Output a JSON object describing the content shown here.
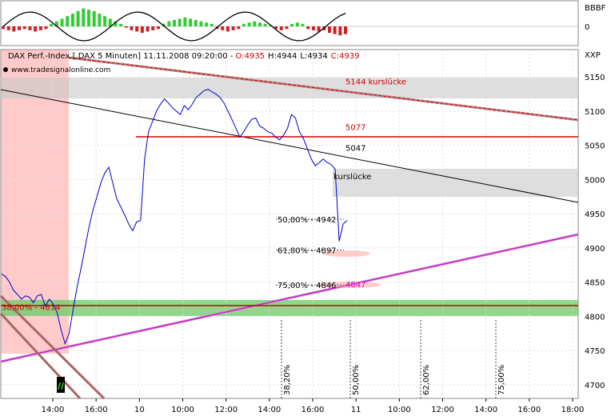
{
  "chart_data": {
    "type": "line",
    "title": "DAX Perf.-Index [.DAX  5 Minuten] 11.11.2008 09:20:00 - O:4935 H:4944 L:4934 C:4939",
    "title_parts": {
      "instrument": "DAX Perf.-Index [.DAX  5 Minuten] 11.11.2008 09:20:00 - ",
      "open": "O:4935",
      "high": "H:4944",
      "low": "L:4934",
      "close": "C:4939"
    },
    "source": "www.tradesignalonline.com",
    "xlabel": "",
    "ylabel": "",
    "ylim": [
      4680,
      5190
    ],
    "y_ticks": [
      "5150",
      "5100",
      "5050",
      "5000",
      "4950",
      "4900",
      "4850",
      "4800",
      "4750",
      "4700"
    ],
    "x_ticks": [
      "14:00",
      "16:00",
      "10",
      "10:00",
      "12:00",
      "14:00",
      "16:00",
      "11",
      "10:00",
      "12:00",
      "14:00",
      "16:00",
      "18:00"
    ],
    "y_axis_label": "XXP",
    "series": [
      {
        "name": "DAX",
        "color": "#0000cc",
        "values": [
          4862,
          4858,
          4850,
          4838,
          4832,
          4825,
          4830,
          4828,
          4820,
          4830,
          4832,
          4815,
          4825,
          4818,
          4805,
          4780,
          4760,
          4775,
          4810,
          4842,
          4870,
          4900,
          4930,
          4955,
          4975,
          4995,
          5010,
          5018,
          4995,
          4972,
          4960,
          4948,
          4935,
          4925,
          4938,
          4940,
          5030,
          5070,
          5085,
          5100,
          5110,
          5118,
          5112,
          5105,
          5100,
          5095,
          5108,
          5102,
          5110,
          5120,
          5125,
          5130,
          5132,
          5128,
          5125,
          5120,
          5112,
          5100,
          5088,
          5075,
          5062,
          5070,
          5080,
          5088,
          5090,
          5078,
          5075,
          5070,
          5068,
          5062,
          5058,
          5065,
          5075,
          5095,
          5090,
          5070,
          5060,
          5045,
          5030,
          5020,
          5025,
          5030,
          5025,
          5022,
          5015,
          4910,
          4935,
          4940
        ]
      }
    ],
    "price_levels": [
      {
        "label": "5144  kurslücke",
        "value": 5144,
        "color": "#cc0000"
      },
      {
        "label": "5077",
        "value": 5077,
        "color": "#cc0000"
      },
      {
        "label": "5047",
        "value": 5047,
        "color": "#000000"
      },
      {
        "label": "kurslücke",
        "value": 5005,
        "color": "#000000"
      },
      {
        "label": "4847",
        "value": 4847,
        "color": "#cc00cc"
      },
      {
        "label": "38,00% - 4814",
        "value": 4814,
        "color": "#cc0000"
      }
    ],
    "retracements": [
      {
        "label": "50,00% - 4942",
        "value": 4942
      },
      {
        "label": "61,80% - 4897",
        "value": 4897
      },
      {
        "label": "75,00% - 4846",
        "value": 4846
      }
    ],
    "time_fibs": [
      "38,20%",
      "50,00%",
      "62,00%",
      "75,00%"
    ],
    "highlight_color": "#ff6666",
    "support_band_color": "#66cc66",
    "gap_band_color": "#c8c8c8",
    "trend_color": "#cc00cc",
    "indicator": {
      "y_ticks": [
        "BBBF",
        "0"
      ],
      "histogram": [
        -2,
        -3,
        -4,
        -3,
        -2,
        -3,
        -4,
        -3,
        -2,
        2,
        4,
        6,
        8,
        10,
        12,
        14,
        13,
        12,
        10,
        8,
        6,
        4,
        2,
        -1,
        -3,
        -4,
        -5,
        -4,
        -3,
        -2,
        2,
        4,
        5,
        6,
        7,
        6,
        5,
        4,
        3,
        2,
        -2,
        -3,
        -4,
        -3,
        -2,
        2,
        3,
        4,
        3,
        2,
        1,
        -2,
        -3,
        -2,
        2,
        3,
        2,
        -2,
        -3,
        -4,
        -3,
        -5,
        -6,
        -7,
        -6
      ]
    },
    "marker_label": "//"
  }
}
